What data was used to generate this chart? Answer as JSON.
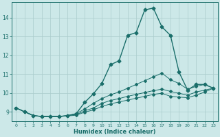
{
  "title": "",
  "xlabel": "Humidex (Indice chaleur)",
  "xlim": [
    -0.5,
    23.5
  ],
  "ylim": [
    8.5,
    14.8
  ],
  "yticks": [
    9,
    10,
    11,
    12,
    13,
    14
  ],
  "xticks": [
    0,
    1,
    2,
    3,
    4,
    5,
    6,
    7,
    8,
    9,
    10,
    11,
    12,
    13,
    14,
    15,
    16,
    17,
    18,
    19,
    20,
    21,
    22,
    23
  ],
  "bg_color": "#cce8e8",
  "line_color": "#1a6e6a",
  "grid_color": "#aacccc",
  "lines": [
    {
      "x": [
        0,
        1,
        2,
        3,
        4,
        5,
        6,
        7,
        8,
        9,
        10,
        11,
        12,
        13,
        14,
        15,
        16,
        17,
        18,
        19,
        20,
        21,
        22,
        23
      ],
      "y": [
        9.2,
        9.0,
        8.8,
        8.75,
        8.75,
        8.75,
        8.8,
        8.9,
        9.5,
        9.95,
        10.5,
        11.5,
        11.7,
        13.05,
        13.2,
        14.4,
        14.5,
        13.5,
        13.05,
        11.1,
        10.15,
        10.45,
        10.45,
        10.25
      ]
    },
    {
      "x": [
        0,
        1,
        2,
        3,
        4,
        5,
        6,
        7,
        8,
        9,
        10,
        11,
        12,
        13,
        14,
        15,
        16,
        17,
        18,
        19,
        20,
        21,
        22,
        23
      ],
      "y": [
        9.2,
        9.0,
        8.8,
        8.75,
        8.75,
        8.75,
        8.8,
        8.9,
        9.15,
        9.45,
        9.7,
        9.9,
        10.05,
        10.25,
        10.45,
        10.65,
        10.85,
        11.05,
        10.7,
        10.5,
        10.2,
        10.35,
        10.45,
        10.25
      ]
    },
    {
      "x": [
        0,
        1,
        2,
        3,
        4,
        5,
        6,
        7,
        8,
        9,
        10,
        11,
        12,
        13,
        14,
        15,
        16,
        17,
        18,
        19,
        20,
        21,
        22,
        23
      ],
      "y": [
        9.2,
        9.0,
        8.8,
        8.75,
        8.75,
        8.75,
        8.8,
        8.85,
        9.05,
        9.2,
        9.45,
        9.6,
        9.7,
        9.82,
        9.92,
        10.02,
        10.12,
        10.2,
        10.08,
        9.98,
        9.88,
        10.05,
        10.15,
        10.25
      ]
    },
    {
      "x": [
        0,
        1,
        2,
        3,
        4,
        5,
        6,
        7,
        8,
        9,
        10,
        11,
        12,
        13,
        14,
        15,
        16,
        17,
        18,
        19,
        20,
        21,
        22,
        23
      ],
      "y": [
        9.2,
        9.0,
        8.8,
        8.75,
        8.75,
        8.75,
        8.78,
        8.82,
        8.98,
        9.1,
        9.28,
        9.42,
        9.52,
        9.62,
        9.72,
        9.82,
        9.92,
        9.98,
        9.82,
        9.78,
        9.75,
        9.88,
        10.05,
        10.25
      ]
    }
  ]
}
